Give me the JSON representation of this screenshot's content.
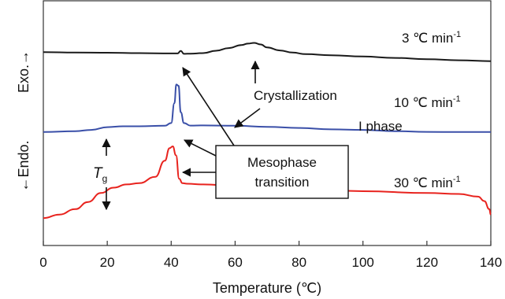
{
  "chart_data": {
    "type": "line",
    "xlabel": "Temperature (℃)",
    "ylabel": "←Endo.   Exo.→",
    "xlim": [
      0,
      140
    ],
    "xticks": [
      "0",
      "20",
      "40",
      "60",
      "80",
      "100",
      "120",
      "140"
    ],
    "grid": false,
    "series": [
      {
        "name": "3 ℃ min",
        "color": "#1a1a1a",
        "x": [
          0,
          10,
          20,
          30,
          40,
          42,
          43,
          44,
          46,
          50,
          54,
          58,
          62,
          64,
          66,
          68,
          70,
          74,
          78,
          82,
          90,
          100,
          110,
          120,
          130,
          140
        ],
        "y": [
          0.845,
          0.843,
          0.842,
          0.84,
          0.838,
          0.838,
          0.852,
          0.836,
          0.837,
          0.84,
          0.853,
          0.868,
          0.885,
          0.893,
          0.897,
          0.888,
          0.872,
          0.855,
          0.843,
          0.834,
          0.828,
          0.821,
          0.813,
          0.806,
          0.8,
          0.795
        ]
      },
      {
        "name": "10 ℃ min",
        "color": "#3a4fa8",
        "x": [
          0,
          10,
          15,
          20,
          25,
          30,
          38,
          40,
          41,
          41.6,
          42.3,
          43,
          44,
          46,
          50,
          60,
          70,
          80,
          90,
          100,
          110,
          120,
          130,
          140
        ],
        "y": [
          0.4,
          0.405,
          0.412,
          0.427,
          0.432,
          0.432,
          0.435,
          0.45,
          0.56,
          0.665,
          0.658,
          0.51,
          0.45,
          0.436,
          0.437,
          0.435,
          0.429,
          0.423,
          0.415,
          0.412,
          0.405,
          0.401,
          0.4,
          0.4
        ]
      },
      {
        "name": "30 ℃ min",
        "color": "#e8231e",
        "x": [
          0,
          5,
          10,
          14,
          18,
          22,
          26,
          30,
          35,
          38,
          39.5,
          40.5,
          41.5,
          42.5,
          43.5,
          45,
          50,
          60,
          80,
          100,
          120,
          130,
          136,
          138,
          139.5,
          140
        ],
        "y": [
          -0.08,
          -0.06,
          -0.03,
          0.01,
          0.06,
          0.09,
          0.108,
          0.115,
          0.15,
          0.24,
          0.31,
          0.32,
          0.27,
          0.14,
          0.115,
          0.112,
          0.108,
          0.1,
          0.085,
          0.07,
          0.06,
          0.055,
          0.04,
          0.015,
          -0.03,
          -0.06
        ]
      }
    ]
  },
  "labels": {
    "rate_3": "3 ℃ min",
    "rate_10": "10 ℃ min",
    "rate_30": "30 ℃ min",
    "rate_exp": "-1",
    "crystallization": "Crystallization",
    "i_phase": "I phase",
    "tg_letter": "T",
    "tg_sub": "g",
    "meso_line1": "Mesophase",
    "meso_line2": "transition",
    "exo": "Exo.→",
    "endo": "←Endo."
  }
}
